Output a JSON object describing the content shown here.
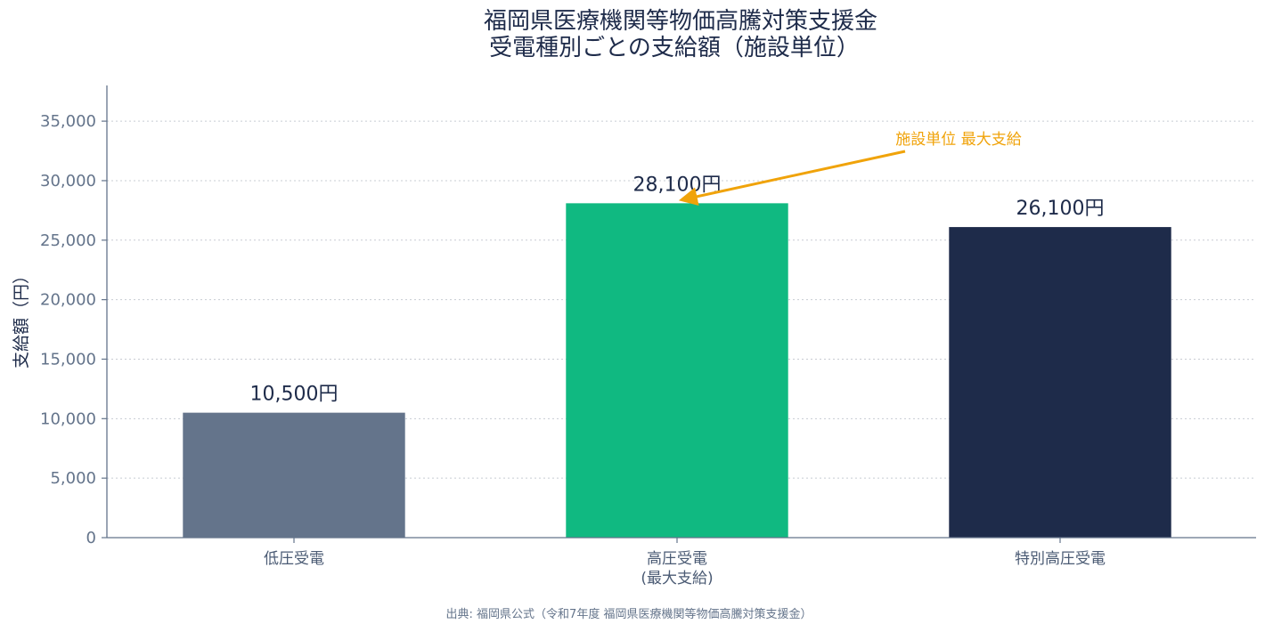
{
  "chart_data": {
    "type": "bar",
    "title_lines": [
      "福岡県医療機関等物価高騰対策支援金",
      "受電種別ごとの支給額（施設単位）"
    ],
    "ylabel": "支給額（円）",
    "xlabel": "",
    "categories": [
      [
        "低圧受電"
      ],
      [
        "高圧受電",
        "(最大支給)"
      ],
      [
        "特別高圧受電"
      ]
    ],
    "values": [
      10500,
      28100,
      26100
    ],
    "value_labels": [
      "10,500円",
      "28,100円",
      "26,100円"
    ],
    "bar_colors": [
      "#64748b",
      "#10b981",
      "#1e2b4a"
    ],
    "ylim": [
      0,
      38000
    ],
    "yticks": [
      0,
      5000,
      10000,
      15000,
      20000,
      25000,
      30000,
      35000
    ],
    "ytick_labels": [
      "0",
      "5,000",
      "10,000",
      "15,000",
      "20,000",
      "25,000",
      "30,000",
      "35,000"
    ],
    "grid": true,
    "annotation": {
      "text": "施設単位 最大支給",
      "target_index": 1,
      "color": "#f0a30a"
    },
    "source": "出典: 福岡県公式（令和7年度 福岡県医療機関等物価高騰対策支援金）"
  }
}
